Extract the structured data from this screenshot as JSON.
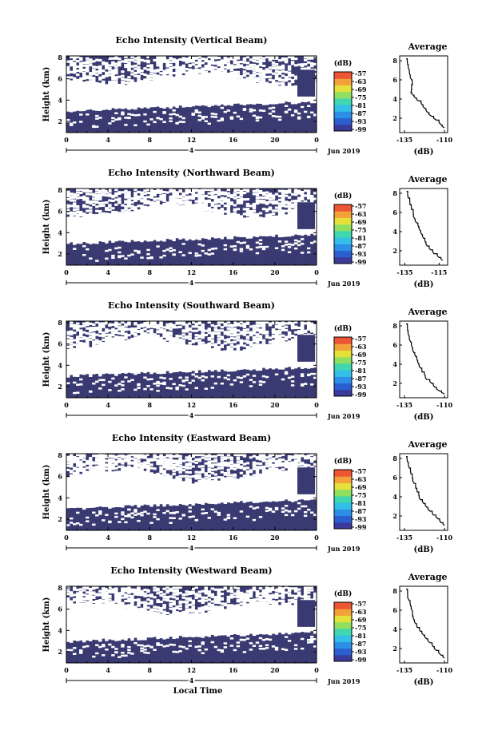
{
  "colors": {
    "background": "#3a3a73",
    "colorbar": [
      "#3a3a9a",
      "#2b5fd1",
      "#2b8fe8",
      "#33c0e8",
      "#3fd6b0",
      "#8fe060",
      "#e6e03a",
      "#f3a23a",
      "#ee5533"
    ]
  },
  "chart_data": [
    {
      "type": "heatmap",
      "title": "Echo Intensity (Vertical Beam)",
      "ylabel": "Height (km)",
      "x_ticks": [
        "0",
        "4",
        "8",
        "12",
        "16",
        "20",
        "0"
      ],
      "y_ticks": [
        "8",
        "6",
        "4",
        "2"
      ],
      "date_label": "4",
      "date_suffix": "Jun 2019",
      "colorbar_unit": "(dB)",
      "colorbar_ticks": [
        "-57",
        "-63",
        "-69",
        "-75",
        "-81",
        "-87",
        "-93",
        "-99"
      ],
      "profile": {
        "title": "Average",
        "xlabel": "(dB)",
        "x_ticks": [
          "-135",
          "-110"
        ],
        "y_ticks": [
          "8",
          "6",
          "4",
          "2"
        ],
        "xlim": [
          -138,
          -108
        ],
        "ylim": [
          0.5,
          8.5
        ],
        "points": [
          [
            -134,
            8.2
          ],
          [
            -133,
            7.6
          ],
          [
            -132,
            7.0
          ],
          [
            -131.5,
            6.5
          ],
          [
            -130.5,
            6.0
          ],
          [
            -130,
            5.5
          ],
          [
            -130.5,
            5.0
          ],
          [
            -131,
            4.7
          ],
          [
            -129.5,
            4.4
          ],
          [
            -128,
            4.1
          ],
          [
            -126,
            3.8
          ],
          [
            -124,
            3.4
          ],
          [
            -122,
            3.0
          ],
          [
            -120.5,
            2.6
          ],
          [
            -118,
            2.2
          ],
          [
            -115,
            1.8
          ],
          [
            -112,
            1.3
          ],
          [
            -110,
            1.0
          ]
        ]
      }
    },
    {
      "type": "heatmap",
      "title": "Echo Intensity (Northward Beam)",
      "ylabel": "Height (km)",
      "x_ticks": [
        "0",
        "4",
        "8",
        "12",
        "16",
        "20",
        "0"
      ],
      "y_ticks": [
        "8",
        "6",
        "4",
        "2"
      ],
      "date_label": "4",
      "date_suffix": "Jun 2019",
      "colorbar_unit": "(dB)",
      "colorbar_ticks": [
        "-57",
        "-63",
        "-69",
        "-75",
        "-81",
        "-87",
        "-93",
        "-99"
      ],
      "profile": {
        "title": "Average",
        "xlabel": "(dB)",
        "x_ticks": [
          "-135",
          "-115"
        ],
        "y_ticks": [
          "8",
          "6",
          "4",
          "2"
        ],
        "xlim": [
          -138,
          -110
        ],
        "ylim": [
          0.5,
          8.5
        ],
        "points": [
          [
            -134,
            8.2
          ],
          [
            -133,
            7.5
          ],
          [
            -132,
            6.8
          ],
          [
            -131,
            6.3
          ],
          [
            -130,
            5.8
          ],
          [
            -129,
            5.3
          ],
          [
            -128,
            4.9
          ],
          [
            -127,
            4.5
          ],
          [
            -126,
            4.1
          ],
          [
            -125,
            3.7
          ],
          [
            -124,
            3.3
          ],
          [
            -123,
            2.9
          ],
          [
            -122,
            2.5
          ],
          [
            -120,
            2.1
          ],
          [
            -118,
            1.7
          ],
          [
            -115,
            1.3
          ],
          [
            -113,
            1.0
          ]
        ]
      }
    },
    {
      "type": "heatmap",
      "title": "Echo Intensity (Southward Beam)",
      "ylabel": "Height (km)",
      "x_ticks": [
        "0",
        "4",
        "8",
        "12",
        "16",
        "20",
        "0"
      ],
      "y_ticks": [
        "8",
        "6",
        "4",
        "2"
      ],
      "date_label": "4",
      "date_suffix": "Jun 2019",
      "colorbar_unit": "(dB)",
      "colorbar_ticks": [
        "-57",
        "-63",
        "-69",
        "-75",
        "-81",
        "-87",
        "-93",
        "-99"
      ],
      "profile": {
        "title": "Average",
        "xlabel": "(dB)",
        "x_ticks": [
          "-135",
          "-110"
        ],
        "y_ticks": [
          "8",
          "6",
          "4",
          "2"
        ],
        "xlim": [
          -138,
          -108
        ],
        "ylim": [
          0.5,
          8.5
        ],
        "points": [
          [
            -134,
            8.2
          ],
          [
            -133,
            7.5
          ],
          [
            -132,
            6.9
          ],
          [
            -131,
            6.3
          ],
          [
            -130,
            5.7
          ],
          [
            -129,
            5.2
          ],
          [
            -128,
            4.8
          ],
          [
            -127,
            4.4
          ],
          [
            -126,
            4.0
          ],
          [
            -125,
            3.6
          ],
          [
            -124,
            3.2
          ],
          [
            -122,
            2.8
          ],
          [
            -121,
            2.4
          ],
          [
            -118,
            2.0
          ],
          [
            -116,
            1.6
          ],
          [
            -113,
            1.2
          ],
          [
            -110,
            0.9
          ]
        ]
      }
    },
    {
      "type": "heatmap",
      "title": "Echo Intensity (Eastward Beam)",
      "ylabel": "Height (km)",
      "x_ticks": [
        "0",
        "4",
        "8",
        "12",
        "16",
        "20",
        "0"
      ],
      "y_ticks": [
        "8",
        "6",
        "4",
        "2"
      ],
      "date_label": "4",
      "date_suffix": "Jun 2019",
      "colorbar_unit": "(dB)",
      "colorbar_ticks": [
        "-57",
        "-63",
        "-69",
        "-75",
        "-81",
        "-87",
        "-93",
        "-99"
      ],
      "profile": {
        "title": "Average",
        "xlabel": "(dB)",
        "x_ticks": [
          "-135",
          "-110"
        ],
        "y_ticks": [
          "8",
          "6",
          "4",
          "2"
        ],
        "xlim": [
          -138,
          -108
        ],
        "ylim": [
          0.5,
          8.5
        ],
        "points": [
          [
            -134,
            8.2
          ],
          [
            -133,
            7.6
          ],
          [
            -132,
            7.0
          ],
          [
            -131,
            6.4
          ],
          [
            -130,
            5.9
          ],
          [
            -129,
            5.4
          ],
          [
            -128,
            4.9
          ],
          [
            -127,
            4.5
          ],
          [
            -126,
            4.1
          ],
          [
            -125,
            3.7
          ],
          [
            -123,
            3.3
          ],
          [
            -121,
            2.9
          ],
          [
            -119,
            2.5
          ],
          [
            -117,
            2.1
          ],
          [
            -114,
            1.7
          ],
          [
            -112,
            1.3
          ],
          [
            -110,
            1.0
          ]
        ]
      }
    },
    {
      "type": "heatmap",
      "title": "Echo Intensity (Westward Beam)",
      "ylabel": "Height (km)",
      "xlabel": "Local Time",
      "x_ticks": [
        "0",
        "4",
        "8",
        "12",
        "16",
        "20",
        "0"
      ],
      "y_ticks": [
        "8",
        "6",
        "4",
        "2"
      ],
      "date_label": "4",
      "date_suffix": "Jun 2019",
      "colorbar_unit": "(dB)",
      "colorbar_ticks": [
        "-57",
        "-63",
        "-69",
        "-75",
        "-81",
        "-87",
        "-93",
        "-99"
      ],
      "profile": {
        "title": "Average",
        "xlabel": "(dB)",
        "x_ticks": [
          "-135",
          "-110"
        ],
        "y_ticks": [
          "8",
          "6",
          "4",
          "2"
        ],
        "xlim": [
          -138,
          -108
        ],
        "ylim": [
          0.5,
          8.5
        ],
        "points": [
          [
            -134,
            8.2
          ],
          [
            -133,
            7.6
          ],
          [
            -132,
            7.0
          ],
          [
            -131,
            6.4
          ],
          [
            -130,
            5.9
          ],
          [
            -130,
            5.4
          ],
          [
            -129,
            5.0
          ],
          [
            -128,
            4.6
          ],
          [
            -127,
            4.2
          ],
          [
            -125,
            3.8
          ],
          [
            -123,
            3.4
          ],
          [
            -121,
            3.0
          ],
          [
            -119,
            2.6
          ],
          [
            -117,
            2.2
          ],
          [
            -115,
            1.8
          ],
          [
            -112,
            1.3
          ],
          [
            -110,
            1.0
          ]
        ]
      }
    }
  ]
}
